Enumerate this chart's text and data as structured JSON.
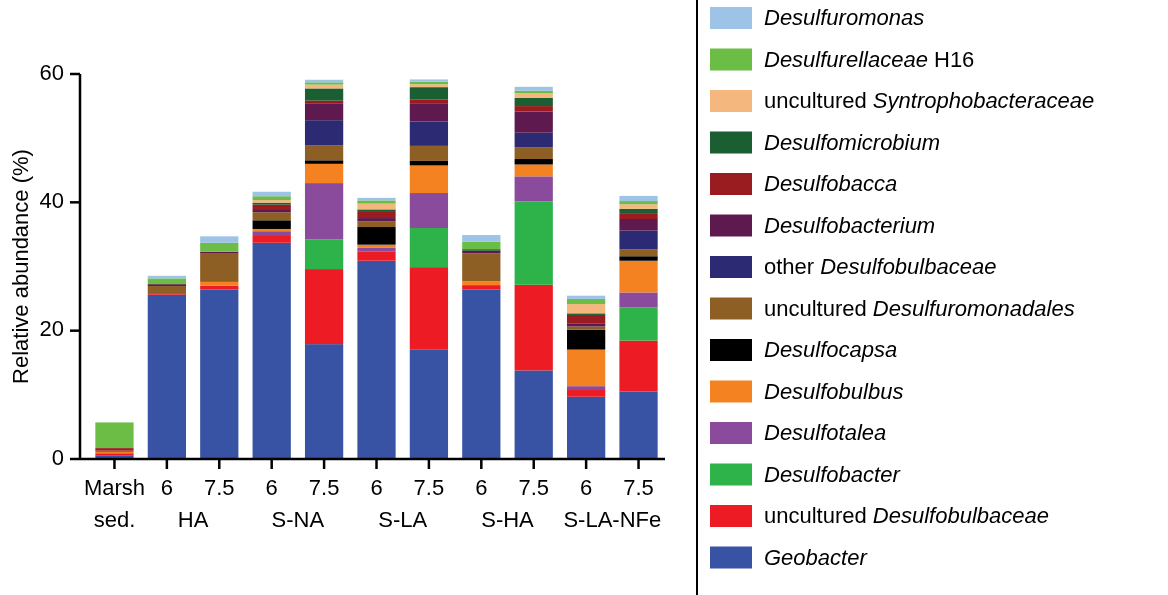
{
  "chart_data": {
    "type": "bar",
    "stacked": true,
    "ylabel": "Relative abundance (%)",
    "ylim": [
      0,
      60
    ],
    "yticks": [
      0,
      20,
      40,
      60
    ],
    "legend": "right",
    "categories": [
      "Marsh sed.",
      "6",
      "7.5",
      "6",
      "7.5",
      "6",
      "7.5",
      "6",
      "7.5",
      "6",
      "7.5"
    ],
    "annotations": [
      "HA",
      "S-NA",
      "S-LA",
      "S-HA",
      "S-LA-NFe"
    ],
    "series": [
      {
        "name": "Geobacter",
        "color": "#3953a4",
        "values": [
          0.5,
          25.6,
          26.4,
          33.7,
          17.9,
          30.9,
          17.1,
          26.4,
          13.8,
          9.7,
          10.5
        ]
      },
      {
        "name": "uncultured Desulfobulbaceae",
        "color": "#ed1c24",
        "values": [
          0.4,
          0.25,
          0.6,
          1.2,
          11.7,
          1.4,
          12.8,
          0.7,
          13.35,
          1.05,
          7.95
        ]
      },
      {
        "name": "Desulfobacter",
        "color": "#2db34a",
        "values": [
          0,
          0,
          0,
          0,
          4.6,
          0,
          6.1,
          0,
          13.0,
          0,
          5.2
        ]
      },
      {
        "name": "Desulfotalea",
        "color": "#8a4b9c",
        "values": [
          0,
          0,
          0,
          0.6,
          8.8,
          0.6,
          5.45,
          0,
          3.9,
          0.6,
          2.3
        ]
      },
      {
        "name": "Desulfobulbus",
        "color": "#f58220",
        "values": [
          0.2,
          0,
          0.6,
          0.35,
          3.0,
          0.5,
          4.3,
          0.6,
          1.85,
          5.7,
          4.95
        ]
      },
      {
        "name": "Desulfocapsa",
        "color": "#000000",
        "values": [
          0,
          0,
          0,
          1.35,
          0.55,
          2.75,
          0.7,
          0,
          0.85,
          3.1,
          0.7
        ]
      },
      {
        "name": "uncultured Desulfuromonadales",
        "color": "#8d5f24",
        "values": [
          0.2,
          1.1,
          4.4,
          1.25,
          2.3,
          0.9,
          2.35,
          4.35,
          1.85,
          0.5,
          1.05
        ]
      },
      {
        "name": "other Desulfobulbaceae",
        "color": "#2b2a72",
        "values": [
          0,
          0,
          0,
          0,
          3.95,
          0,
          3.8,
          0,
          2.25,
          0,
          2.95
        ]
      },
      {
        "name": "Desulfobacterium",
        "color": "#5e1a4e",
        "values": [
          0,
          0.3,
          0.3,
          0.5,
          2.55,
          0.5,
          2.85,
          0.4,
          3.3,
          0.5,
          1.8
        ]
      },
      {
        "name": "Desulfobacca",
        "color": "#9b1c20",
        "values": [
          0.4,
          0,
          0,
          0.7,
          0.5,
          0.95,
          0.6,
          0,
          0.85,
          1.3,
          0.8
        ]
      },
      {
        "name": "Desulfomicrobium",
        "color": "#1b5e32",
        "values": [
          0,
          0,
          0,
          0.3,
          1.9,
          0.4,
          1.9,
          0.25,
          1.3,
          0.25,
          0.8
        ]
      },
      {
        "name": "uncultured Syntrophobacteraceae",
        "color": "#f4b77e",
        "values": [
          0,
          0,
          0,
          0.4,
          0.6,
          0.9,
          0.45,
          0,
          0.7,
          1.45,
          0.7
        ]
      },
      {
        "name": "Desulfurellaceae H16",
        "color": "#6bbd45",
        "values": [
          4.0,
          0.9,
          1.4,
          0.6,
          0.35,
          0.5,
          0.4,
          1.15,
          0.4,
          0.8,
          0.5
        ]
      },
      {
        "name": "Desulfuromonas",
        "color": "#9dc3e6",
        "values": [
          0,
          0.4,
          1.0,
          0.7,
          0.4,
          0.4,
          0.35,
          1.05,
          0.6,
          0.5,
          0.8
        ]
      }
    ]
  }
}
